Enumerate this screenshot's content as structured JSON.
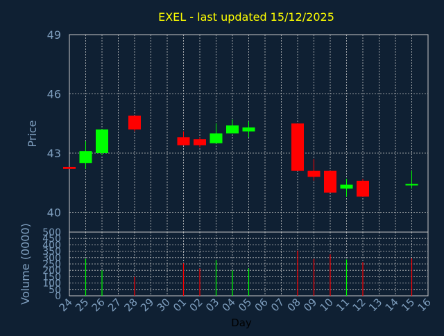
{
  "chart_data": [
    {
      "type": "candlestick",
      "title": "EXEL - last updated 15/12/2025",
      "ylabel": "Price",
      "ylim": [
        39,
        49
      ],
      "yticks": [
        40,
        43,
        46,
        49
      ],
      "grid": true,
      "x": [
        "24",
        "25",
        "26",
        "27",
        "28",
        "29",
        "30",
        "01",
        "02",
        "03",
        "04",
        "05",
        "06",
        "07",
        "08",
        "09",
        "10",
        "11",
        "12",
        "13",
        "14",
        "15",
        "16"
      ],
      "candles": [
        {
          "x": "24",
          "open": 42.3,
          "high": 42.3,
          "low": 42.2,
          "close": 42.2
        },
        {
          "x": "25",
          "open": 42.5,
          "high": 43.6,
          "low": 42.2,
          "close": 43.1
        },
        {
          "x": "26",
          "open": 43.0,
          "high": 44.2,
          "low": 42.9,
          "close": 44.2
        },
        {
          "x": "28",
          "open": 44.9,
          "high": 44.9,
          "low": 44.1,
          "close": 44.2
        },
        {
          "x": "01",
          "open": 43.8,
          "high": 44.1,
          "low": 43.4,
          "close": 43.4
        },
        {
          "x": "02",
          "open": 43.7,
          "high": 43.8,
          "low": 43.3,
          "close": 43.4
        },
        {
          "x": "03",
          "open": 43.5,
          "high": 44.5,
          "low": 43.5,
          "close": 44.0
        },
        {
          "x": "04",
          "open": 44.0,
          "high": 44.7,
          "low": 44.0,
          "close": 44.4
        },
        {
          "x": "05",
          "open": 44.1,
          "high": 44.6,
          "low": 43.8,
          "close": 44.3
        },
        {
          "x": "08",
          "open": 44.5,
          "high": 44.5,
          "low": 42.1,
          "close": 42.1
        },
        {
          "x": "09",
          "open": 42.1,
          "high": 42.7,
          "low": 41.6,
          "close": 41.8
        },
        {
          "x": "10",
          "open": 42.1,
          "high": 42.1,
          "low": 41.0,
          "close": 41.0
        },
        {
          "x": "11",
          "open": 41.2,
          "high": 41.7,
          "low": 40.8,
          "close": 41.4
        },
        {
          "x": "12",
          "open": 41.6,
          "high": 41.7,
          "low": 40.8,
          "close": 40.8
        },
        {
          "x": "15",
          "open": 41.4,
          "high": 42.1,
          "low": 41.2,
          "close": 41.4
        }
      ],
      "colors": {
        "up": "#00ff00",
        "down": "#ff0000",
        "axis_text": "#7f9fbf",
        "title": "#ffff00",
        "grid": "#c8c8c8"
      }
    },
    {
      "type": "bar",
      "ylabel": "Volume (0000)",
      "xlabel": "Day",
      "ylim": [
        0,
        500
      ],
      "yticks": [
        0,
        50,
        100,
        150,
        200,
        250,
        300,
        350,
        400,
        450,
        500
      ],
      "grid": true,
      "categories": [
        "24",
        "25",
        "26",
        "27",
        "28",
        "29",
        "30",
        "01",
        "02",
        "03",
        "04",
        "05",
        "06",
        "07",
        "08",
        "09",
        "10",
        "11",
        "12",
        "13",
        "14",
        "15",
        "16"
      ],
      "bars": [
        {
          "x": "25",
          "value": 290,
          "direction": "up"
        },
        {
          "x": "26",
          "value": 200,
          "direction": "up"
        },
        {
          "x": "28",
          "value": 150,
          "direction": "down"
        },
        {
          "x": "01",
          "value": 255,
          "direction": "down"
        },
        {
          "x": "02",
          "value": 215,
          "direction": "down"
        },
        {
          "x": "03",
          "value": 280,
          "direction": "up"
        },
        {
          "x": "04",
          "value": 200,
          "direction": "up"
        },
        {
          "x": "05",
          "value": 215,
          "direction": "up"
        },
        {
          "x": "08",
          "value": 355,
          "direction": "down"
        },
        {
          "x": "09",
          "value": 290,
          "direction": "down"
        },
        {
          "x": "10",
          "value": 325,
          "direction": "down"
        },
        {
          "x": "11",
          "value": 285,
          "direction": "up"
        },
        {
          "x": "12",
          "value": 265,
          "direction": "down"
        },
        {
          "x": "15",
          "value": 295,
          "direction": "down"
        }
      ]
    }
  ]
}
